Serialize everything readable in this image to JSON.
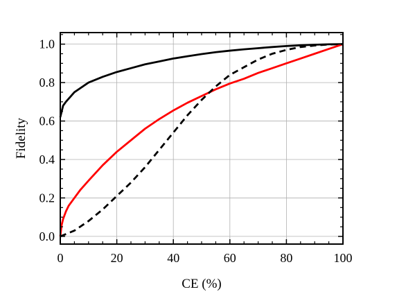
{
  "chart_data": {
    "type": "line",
    "xlabel": "CE (%)",
    "ylabel": "Fidelity",
    "xlim": [
      0,
      100
    ],
    "ylim": [
      -0.04,
      1.06
    ],
    "x_ticks": [
      0,
      20,
      40,
      60,
      80,
      100
    ],
    "y_ticks": [
      0.0,
      0.2,
      0.4,
      0.6,
      0.8,
      1.0
    ],
    "x_tick_labels": [
      "0",
      "20",
      "40",
      "60",
      "80",
      "100"
    ],
    "y_tick_labels": [
      "0.0",
      "0.2",
      "0.4",
      "0.6",
      "0.8",
      "1.0"
    ],
    "grid": true,
    "legend": "none",
    "series": [
      {
        "color": "#000000",
        "style": "solid",
        "x": [
          0,
          1,
          2,
          5,
          10,
          15,
          20,
          25,
          30,
          35,
          40,
          45,
          50,
          55,
          60,
          65,
          70,
          75,
          80,
          85,
          90,
          95,
          100
        ],
        "y": [
          0.62,
          0.68,
          0.7,
          0.75,
          0.8,
          0.83,
          0.855,
          0.875,
          0.895,
          0.91,
          0.925,
          0.937,
          0.948,
          0.958,
          0.966,
          0.973,
          0.979,
          0.985,
          0.99,
          0.994,
          0.997,
          0.999,
          1.0
        ]
      },
      {
        "color": "#ff0000",
        "style": "solid",
        "x": [
          0,
          0.5,
          1,
          2,
          3,
          5,
          7,
          10,
          15,
          20,
          25,
          30,
          35,
          40,
          45,
          50,
          55,
          60,
          65,
          70,
          75,
          80,
          85,
          90,
          95,
          100
        ],
        "y": [
          0.0,
          0.06,
          0.09,
          0.13,
          0.16,
          0.2,
          0.24,
          0.29,
          0.37,
          0.44,
          0.5,
          0.56,
          0.61,
          0.655,
          0.695,
          0.73,
          0.765,
          0.795,
          0.82,
          0.85,
          0.875,
          0.9,
          0.925,
          0.95,
          0.975,
          1.0
        ]
      },
      {
        "color": "#000000",
        "style": "dashed",
        "x": [
          0,
          5,
          10,
          15,
          20,
          25,
          30,
          35,
          40,
          45,
          50,
          55,
          60,
          65,
          70,
          75,
          80,
          85,
          90,
          95,
          100
        ],
        "y": [
          0.0,
          0.03,
          0.08,
          0.14,
          0.21,
          0.28,
          0.36,
          0.45,
          0.54,
          0.63,
          0.71,
          0.78,
          0.84,
          0.88,
          0.92,
          0.95,
          0.97,
          0.985,
          0.993,
          0.998,
          1.0
        ]
      }
    ]
  }
}
